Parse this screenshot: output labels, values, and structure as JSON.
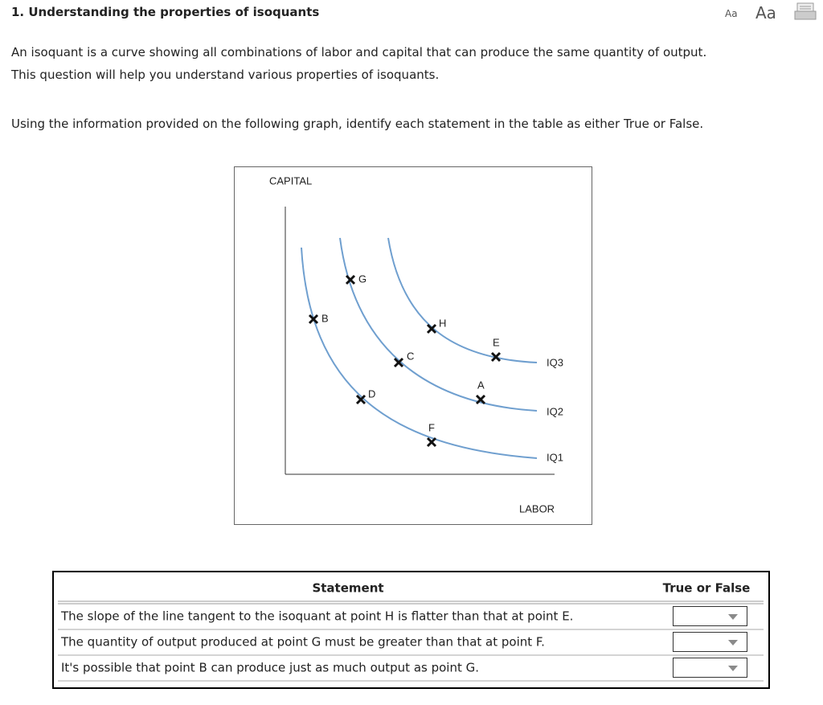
{
  "header": {
    "title": "1. Understanding the properties of isoquants",
    "font_small": "Aa",
    "font_large": "Aa"
  },
  "intro": [
    "An isoquant is a curve showing all combinations of labor and capital that can produce the same quantity of output.",
    "This question will help you understand various properties of isoquants."
  ],
  "instruction": "Using the information provided on the following graph, identify each statement in the table as either True or False.",
  "graph": {
    "y_axis_label": "CAPITAL",
    "x_axis_label": "LABOR",
    "curves": [
      {
        "label": "IQ1"
      },
      {
        "label": "IQ2"
      },
      {
        "label": "IQ3"
      }
    ],
    "points": [
      {
        "label": "B"
      },
      {
        "label": "G"
      },
      {
        "label": "D"
      },
      {
        "label": "C"
      },
      {
        "label": "H"
      },
      {
        "label": "E"
      },
      {
        "label": "A"
      },
      {
        "label": "F"
      }
    ]
  },
  "table": {
    "columns": [
      "Statement",
      "True or False"
    ],
    "rows": [
      "The slope of the line tangent to the isoquant at point H is flatter than that at point E.",
      "The quantity of output produced at point G must be greater than that at point F.",
      "It's possible that point B can produce just as much output as point G."
    ]
  }
}
